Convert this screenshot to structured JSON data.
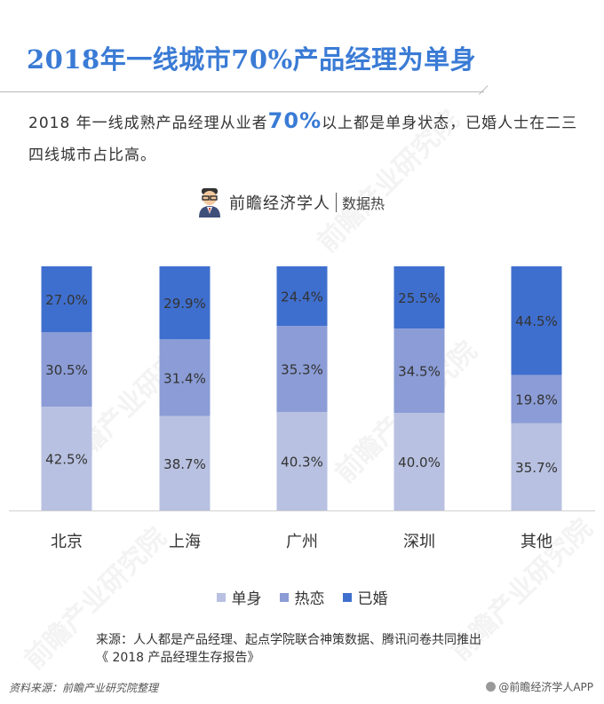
{
  "header": {
    "title": "2018年一线城市70%产品经理为单身",
    "desc_prefix": "2018 年一线成熟产品经理从业者",
    "desc_highlight": "70%",
    "desc_suffix": "以上都是单身状态，已婚人士在二三四线城市占比高。"
  },
  "brand": {
    "name": "前瞻经济学人",
    "sub": "数据热"
  },
  "watermark": "前瞻产业研究院",
  "chart_data": {
    "type": "bar",
    "stacked": true,
    "percent": true,
    "categories": [
      "北京",
      "上海",
      "广州",
      "深圳",
      "其他"
    ],
    "series": [
      {
        "name": "单身",
        "color": "#b8c1e1",
        "values": [
          42.5,
          38.7,
          40.3,
          40.0,
          35.7
        ]
      },
      {
        "name": "热恋",
        "color": "#8b9cd6",
        "values": [
          30.5,
          31.4,
          35.3,
          34.5,
          19.8
        ]
      },
      {
        "name": "已婚",
        "color": "#3f6fce",
        "values": [
          27.0,
          29.9,
          24.4,
          25.5,
          44.5
        ]
      }
    ],
    "legend_position": "bottom",
    "grid": false
  },
  "source": {
    "line1": "来源：人人都是产品经理、起点学院联合神策数据、腾讯问卷共同推出",
    "line2": "《 2018 产品经理生存报告》"
  },
  "footer": {
    "left": "资料来源：前瞻产业研究院整理",
    "right": "@前瞻经济学人APP"
  }
}
